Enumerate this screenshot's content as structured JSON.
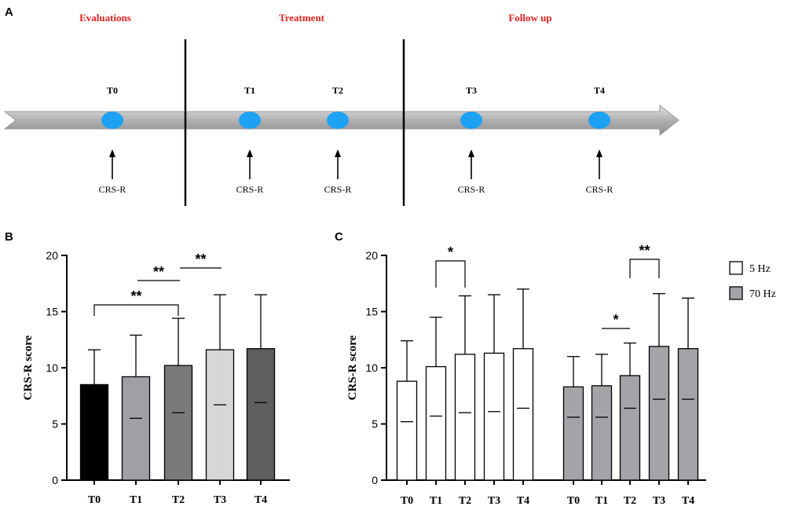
{
  "panel_a": {
    "letter": "A",
    "phases": [
      {
        "label": "Evaluations"
      },
      {
        "label": "Treatment"
      },
      {
        "label": "Follow up"
      }
    ],
    "timepoints": [
      {
        "label": "T0",
        "measure": "CRS-R"
      },
      {
        "label": "T1",
        "measure": "CRS-R"
      },
      {
        "label": "T2",
        "measure": "CRS-R"
      },
      {
        "label": "T3",
        "measure": "CRS-R"
      },
      {
        "label": "T4",
        "measure": "CRS-R"
      }
    ],
    "colors": {
      "phase_text": "#e8201e",
      "dot": "#1da1f2",
      "arrow": "#b4b4b4"
    }
  },
  "chart_data": [
    {
      "panel": "B",
      "type": "bar",
      "ylabel": "CRS-R score",
      "ylim": [
        0,
        20
      ],
      "yticks": [
        0,
        5,
        10,
        15,
        20
      ],
      "categories": [
        "T0",
        "T1",
        "T2",
        "T3",
        "T4"
      ],
      "values": [
        8.5,
        9.2,
        10.2,
        11.6,
        11.7
      ],
      "errors": [
        3.1,
        3.7,
        4.2,
        4.9,
        4.8
      ],
      "colors": [
        "#000000",
        "#a0a0a4",
        "#7a7a7a",
        "#d6d6d6",
        "#5e5e5e"
      ],
      "significance": [
        {
          "from": "T1",
          "to": "T2",
          "label": "**"
        },
        {
          "from": "T2",
          "to": "T3",
          "label": "**"
        },
        {
          "from": "T0",
          "to": "T2",
          "label": "**"
        }
      ]
    },
    {
      "panel": "C",
      "type": "bar",
      "ylabel": "CRS-R score",
      "ylim": [
        0,
        20
      ],
      "yticks": [
        0,
        5,
        10,
        15,
        20
      ],
      "categories": [
        "T0",
        "T1",
        "T2",
        "T3",
        "T4"
      ],
      "series": [
        {
          "name": "5 Hz",
          "color": "#ffffff",
          "values": [
            8.8,
            10.1,
            11.2,
            11.3,
            11.7
          ],
          "errors": [
            3.6,
            4.4,
            5.2,
            5.2,
            5.3
          ]
        },
        {
          "name": "70 Hz",
          "color": "#a4a4a8",
          "values": [
            8.3,
            8.4,
            9.3,
            11.9,
            11.7
          ],
          "errors": [
            2.7,
            2.8,
            2.9,
            4.7,
            4.5
          ]
        }
      ],
      "significance": [
        {
          "series": "5 Hz",
          "from": "T1",
          "to": "T2",
          "label": "*"
        },
        {
          "series": "70 Hz",
          "from": "T1",
          "to": "T2",
          "label": "*"
        },
        {
          "series": "70 Hz",
          "from": "T2",
          "to": "T3",
          "label": "**"
        }
      ],
      "legend": [
        {
          "label": "5 Hz",
          "color": "#ffffff"
        },
        {
          "label": "70 Hz",
          "color": "#a4a4a8"
        }
      ]
    }
  ]
}
